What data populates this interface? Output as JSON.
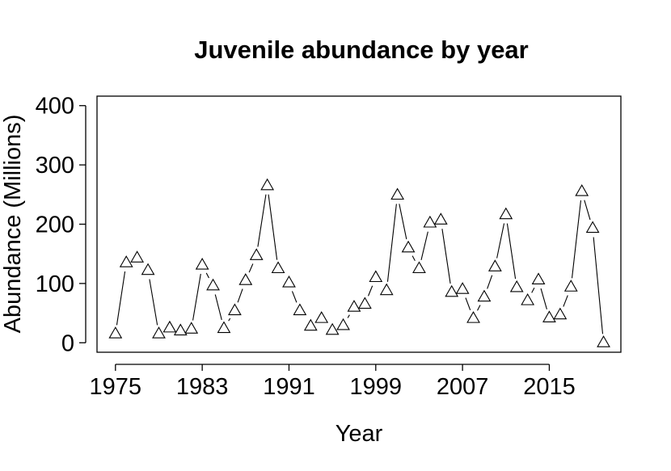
{
  "chart_data": {
    "type": "line",
    "title": "Juvenile abundance by year",
    "xlabel": "Year",
    "ylabel": "Abundance (Millions)",
    "xlim": [
      1973.3,
      2021.6
    ],
    "ylim": [
      -16,
      416
    ],
    "xticks": [
      1975,
      1983,
      1991,
      1999,
      2007,
      2015
    ],
    "yticks": [
      0,
      100,
      200,
      300,
      400
    ],
    "grid": false,
    "marker": "open-triangle",
    "line_style": "solid segments with gaps around markers",
    "series": [
      {
        "x": [
          1975,
          1976,
          1977,
          1978,
          1979,
          1980,
          1981,
          1982,
          1983,
          1984,
          1985,
          1986,
          1987,
          1988,
          1989,
          1990,
          1991,
          1992,
          1993,
          1994,
          1995,
          1996,
          1997,
          1998,
          1999,
          2000,
          2001,
          2002,
          2003,
          2004,
          2005,
          2006,
          2007,
          2008,
          2009,
          2010,
          2011,
          2012,
          2013,
          2014,
          2015,
          2016,
          2017,
          2018,
          2019,
          2020
        ],
        "y": [
          15,
          135,
          143,
          122,
          15,
          25,
          20,
          23,
          131,
          96,
          24,
          54,
          105,
          147,
          265,
          125,
          101,
          54,
          28,
          41,
          21,
          29,
          60,
          65,
          110,
          88,
          249,
          160,
          125,
          202,
          207,
          85,
          90,
          41,
          77,
          128,
          216,
          93,
          71,
          106,
          42,
          47,
          94,
          255,
          193,
          0
        ]
      }
    ]
  }
}
